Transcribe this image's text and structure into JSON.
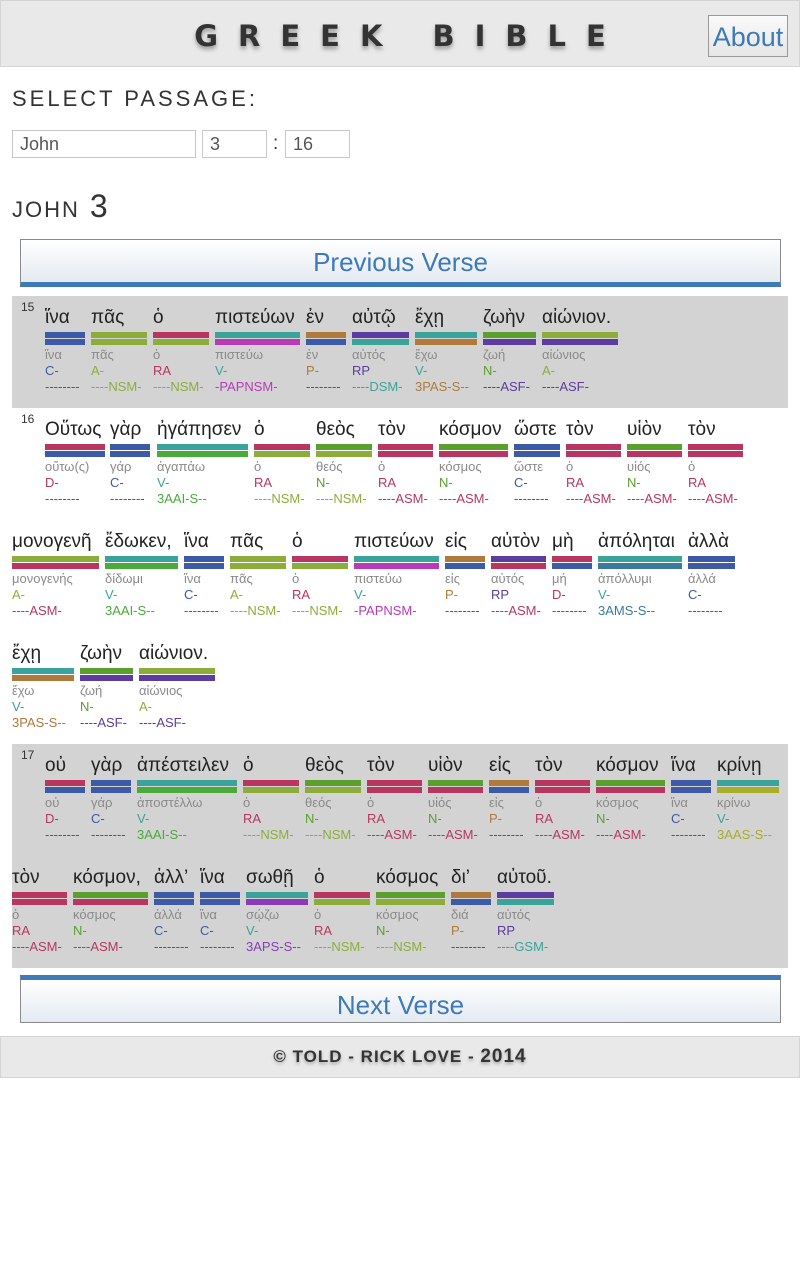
{
  "header": {
    "title": "GREEK BIBLE",
    "about_label": "About"
  },
  "selector": {
    "label": "SELECT PASSAGE:",
    "book": "John",
    "chapter": "3",
    "verse": "16",
    "separator": ":"
  },
  "chapter_heading": {
    "book": "JOHN",
    "chapter": "3"
  },
  "nav": {
    "prev_label": "Previous Verse",
    "next_label": "Next Verse"
  },
  "footer": {
    "owner": "© TOLD - RICK LOVE - ",
    "year": "2014"
  },
  "colors": {
    "RA": "#b8365f",
    "C": "#3c5aa6",
    "N": "#5aa02c",
    "V": "#3aa39a",
    "A": "#8cad3a",
    "P": "#b07a3c",
    "RP": "#5c3c9e",
    "D": "#b8365f",
    "parse_C": "#3c5aa6",
    "parse_RA": "#b8365f",
    "parse_V_pi": "#b07a3c",
    "parse_V_aai": "#5aa02c",
    "parse_V_ppa": "#b8365f",
    "parse_V_ams": "#3a7a9e",
    "parse_V_aas": "#a8ad2a",
    "parse_V_aps": "#8a3cb8",
    "parse_N": "#b8365f",
    "parse_A": "#5c3c9e",
    "parse_RP_dsm": "#3aa39a",
    "parse_RP_asm": "#b8365f",
    "parse_RP_gsm": "#3aa39a"
  },
  "verses": [
    {
      "number": "15",
      "lines": [
        [
          {
            "g": "ἵνα",
            "lx": "ἵνα",
            "ps": "C-",
            "pa": "--------",
            "c1": "#3c5aa6",
            "c2": "#3c5aa6",
            "pc": "#3c5aa6",
            "pac": "#3c5aa6"
          },
          {
            "g": "πᾶς",
            "lx": "πᾶς",
            "ps": "A-",
            "pa": "----NSM-",
            "c1": "#8cad3a",
            "c2": "#8cad3a",
            "pc": "#8cad3a",
            "pac": "#8cad3a"
          },
          {
            "g": "ὁ",
            "lx": "ὁ",
            "ps": "RA",
            "pa": "----NSM-",
            "c1": "#b8365f",
            "c2": "#8cad3a",
            "pc": "#b8365f",
            "pac": "#8cad3a"
          },
          {
            "g": "πιστεύων",
            "lx": "πιστεύω",
            "ps": "V-",
            "pa": "-PAPNSM-",
            "c1": "#3aa39a",
            "c2": "#b83ab8",
            "pc": "#3aa39a",
            "pac": "#b83ab8"
          },
          {
            "g": "ἐν",
            "lx": "ἐν",
            "ps": "P-",
            "pa": "--------",
            "c1": "#b07a3c",
            "c2": "#3c5aa6",
            "pc": "#b07a3c",
            "pac": "#3c5aa6"
          },
          {
            "g": "αὐτῷ",
            "lx": "αὐτός",
            "ps": "RP",
            "pa": "----DSM-",
            "c1": "#5c3c9e",
            "c2": "#3aa39a",
            "pc": "#5c3c9e",
            "pac": "#3aa39a"
          },
          {
            "g": "ἔχῃ",
            "lx": "ἔχω",
            "ps": "V-",
            "pa": "3PAS-S--",
            "c1": "#3aa39a",
            "c2": "#b07a3c",
            "pc": "#3aa39a",
            "pac": "#b07a3c"
          },
          {
            "g": "ζωὴν",
            "lx": "ζωή",
            "ps": "N-",
            "pa": "----ASF-",
            "c1": "#5aa02c",
            "c2": "#5c3c9e",
            "pc": "#5aa02c",
            "pac": "#5c3c9e"
          },
          {
            "g": "αἰώνιον.",
            "lx": "αἰώνιος",
            "ps": "A-",
            "pa": "----ASF-",
            "c1": "#8cad3a",
            "c2": "#5c3c9e",
            "pc": "#8cad3a",
            "pac": "#5c3c9e"
          }
        ]
      ]
    },
    {
      "number": "16",
      "lines": [
        [
          {
            "g": "Οὕτως",
            "lx": "οὕτω(ς)",
            "ps": "D-",
            "pa": "--------",
            "c1": "#b8365f",
            "c2": "#3c5aa6",
            "pc": "#b8365f",
            "pac": "#3c5aa6"
          },
          {
            "g": "γὰρ",
            "lx": "γάρ",
            "ps": "C-",
            "pa": "--------",
            "c1": "#3c5aa6",
            "c2": "#3c5aa6",
            "pc": "#3c5aa6",
            "pac": "#3c5aa6"
          },
          {
            "g": "ἠγάπησεν",
            "lx": "ἀγαπάω",
            "ps": "V-",
            "pa": "3AAI-S--",
            "c1": "#3aa39a",
            "c2": "#4aaa3a",
            "pc": "#3aa39a",
            "pac": "#4aaa3a"
          },
          {
            "g": "ὁ",
            "lx": "ὁ",
            "ps": "RA",
            "pa": "----NSM-",
            "c1": "#b8365f",
            "c2": "#8cad3a",
            "pc": "#b8365f",
            "pac": "#8cad3a"
          },
          {
            "g": "θεὸς",
            "lx": "θεός",
            "ps": "N-",
            "pa": "----NSM-",
            "c1": "#5aa02c",
            "c2": "#8cad3a",
            "pc": "#5aa02c",
            "pac": "#8cad3a"
          },
          {
            "g": "τὸν",
            "lx": "ὁ",
            "ps": "RA",
            "pa": "----ASM-",
            "c1": "#b8365f",
            "c2": "#b8365f",
            "pc": "#b8365f",
            "pac": "#b8365f"
          },
          {
            "g": "κόσμον",
            "lx": "κόσμος",
            "ps": "N-",
            "pa": "----ASM-",
            "c1": "#5aa02c",
            "c2": "#b8365f",
            "pc": "#5aa02c",
            "pac": "#b8365f"
          },
          {
            "g": "ὥστε",
            "lx": "ὥστε",
            "ps": "C-",
            "pa": "--------",
            "c1": "#3c5aa6",
            "c2": "#3c5aa6",
            "pc": "#3c5aa6",
            "pac": "#3c5aa6"
          },
          {
            "g": "τὸν",
            "lx": "ὁ",
            "ps": "RA",
            "pa": "----ASM-",
            "c1": "#b8365f",
            "c2": "#b8365f",
            "pc": "#b8365f",
            "pac": "#b8365f"
          },
          {
            "g": "υἱὸν",
            "lx": "υἱός",
            "ps": "N-",
            "pa": "----ASM-",
            "c1": "#5aa02c",
            "c2": "#b8365f",
            "pc": "#5aa02c",
            "pac": "#b8365f"
          },
          {
            "g": "τὸν",
            "lx": "ὁ",
            "ps": "RA",
            "pa": "----ASM-",
            "c1": "#b8365f",
            "c2": "#b8365f",
            "pc": "#b8365f",
            "pac": "#b8365f"
          }
        ],
        [
          {
            "g": "μονογενῆ",
            "lx": "μονογενής",
            "ps": "A-",
            "pa": "----ASM-",
            "c1": "#8cad3a",
            "c2": "#b8365f",
            "pc": "#8cad3a",
            "pac": "#b8365f"
          },
          {
            "g": "ἔδωκεν,",
            "lx": "δίδωμι",
            "ps": "V-",
            "pa": "3AAI-S--",
            "c1": "#3aa39a",
            "c2": "#4aaa3a",
            "pc": "#3aa39a",
            "pac": "#4aaa3a"
          },
          {
            "g": "ἵνα",
            "lx": "ἵνα",
            "ps": "C-",
            "pa": "--------",
            "c1": "#3c5aa6",
            "c2": "#3c5aa6",
            "pc": "#3c5aa6",
            "pac": "#3c5aa6"
          },
          {
            "g": "πᾶς",
            "lx": "πᾶς",
            "ps": "A-",
            "pa": "----NSM-",
            "c1": "#8cad3a",
            "c2": "#8cad3a",
            "pc": "#8cad3a",
            "pac": "#8cad3a"
          },
          {
            "g": "ὁ",
            "lx": "ὁ",
            "ps": "RA",
            "pa": "----NSM-",
            "c1": "#b8365f",
            "c2": "#8cad3a",
            "pc": "#b8365f",
            "pac": "#8cad3a"
          },
          {
            "g": "πιστεύων",
            "lx": "πιστεύω",
            "ps": "V-",
            "pa": "-PAPNSM-",
            "c1": "#3aa39a",
            "c2": "#b83ab8",
            "pc": "#3aa39a",
            "pac": "#b83ab8"
          },
          {
            "g": "εἰς",
            "lx": "εἰς",
            "ps": "P-",
            "pa": "--------",
            "c1": "#b07a3c",
            "c2": "#3c5aa6",
            "pc": "#b07a3c",
            "pac": "#3c5aa6"
          },
          {
            "g": "αὐτὸν",
            "lx": "αὐτός",
            "ps": "RP",
            "pa": "----ASM-",
            "c1": "#5c3c9e",
            "c2": "#b8365f",
            "pc": "#5c3c9e",
            "pac": "#b8365f"
          },
          {
            "g": "μὴ",
            "lx": "μή",
            "ps": "D-",
            "pa": "--------",
            "c1": "#b8365f",
            "c2": "#3c5aa6",
            "pc": "#b8365f",
            "pac": "#3c5aa6"
          },
          {
            "g": "ἀπόληται",
            "lx": "ἀπόλλυμι",
            "ps": "V-",
            "pa": "3AMS-S--",
            "c1": "#3aa39a",
            "c2": "#3a7a9e",
            "pc": "#3aa39a",
            "pac": "#3a7a9e"
          },
          {
            "g": "ἀλλὰ",
            "lx": "ἀλλά",
            "ps": "C-",
            "pa": "--------",
            "c1": "#3c5aa6",
            "c2": "#3c5aa6",
            "pc": "#3c5aa6",
            "pac": "#3c5aa6"
          }
        ],
        [
          {
            "g": "ἔχῃ",
            "lx": "ἔχω",
            "ps": "V-",
            "pa": "3PAS-S--",
            "c1": "#3aa39a",
            "c2": "#b07a3c",
            "pc": "#3aa39a",
            "pac": "#b07a3c"
          },
          {
            "g": "ζωὴν",
            "lx": "ζωή",
            "ps": "N-",
            "pa": "----ASF-",
            "c1": "#5aa02c",
            "c2": "#5c3c9e",
            "pc": "#5aa02c",
            "pac": "#5c3c9e"
          },
          {
            "g": "αἰώνιον.",
            "lx": "αἰώνιος",
            "ps": "A-",
            "pa": "----ASF-",
            "c1": "#8cad3a",
            "c2": "#5c3c9e",
            "pc": "#8cad3a",
            "pac": "#5c3c9e"
          }
        ]
      ]
    },
    {
      "number": "17",
      "lines": [
        [
          {
            "g": "οὐ",
            "lx": "οὐ",
            "ps": "D-",
            "pa": "--------",
            "c1": "#b8365f",
            "c2": "#3c5aa6",
            "pc": "#b8365f",
            "pac": "#3c5aa6"
          },
          {
            "g": "γὰρ",
            "lx": "γάρ",
            "ps": "C-",
            "pa": "--------",
            "c1": "#3c5aa6",
            "c2": "#3c5aa6",
            "pc": "#3c5aa6",
            "pac": "#3c5aa6"
          },
          {
            "g": "ἀπέστειλεν",
            "lx": "ἀποστέλλω",
            "ps": "V-",
            "pa": "3AAI-S--",
            "c1": "#3aa39a",
            "c2": "#4aaa3a",
            "pc": "#3aa39a",
            "pac": "#4aaa3a"
          },
          {
            "g": "ὁ",
            "lx": "ὁ",
            "ps": "RA",
            "pa": "----NSM-",
            "c1": "#b8365f",
            "c2": "#8cad3a",
            "pc": "#b8365f",
            "pac": "#8cad3a"
          },
          {
            "g": "θεὸς",
            "lx": "θεός",
            "ps": "N-",
            "pa": "----NSM-",
            "c1": "#5aa02c",
            "c2": "#8cad3a",
            "pc": "#5aa02c",
            "pac": "#8cad3a"
          },
          {
            "g": "τὸν",
            "lx": "ὁ",
            "ps": "RA",
            "pa": "----ASM-",
            "c1": "#b8365f",
            "c2": "#b8365f",
            "pc": "#b8365f",
            "pac": "#b8365f"
          },
          {
            "g": "υἱὸν",
            "lx": "υἱός",
            "ps": "N-",
            "pa": "----ASM-",
            "c1": "#5aa02c",
            "c2": "#b8365f",
            "pc": "#5aa02c",
            "pac": "#b8365f"
          },
          {
            "g": "εἰς",
            "lx": "εἰς",
            "ps": "P-",
            "pa": "--------",
            "c1": "#b07a3c",
            "c2": "#3c5aa6",
            "pc": "#b07a3c",
            "pac": "#3c5aa6"
          },
          {
            "g": "τὸν",
            "lx": "ὁ",
            "ps": "RA",
            "pa": "----ASM-",
            "c1": "#b8365f",
            "c2": "#b8365f",
            "pc": "#b8365f",
            "pac": "#b8365f"
          },
          {
            "g": "κόσμον",
            "lx": "κόσμος",
            "ps": "N-",
            "pa": "----ASM-",
            "c1": "#5aa02c",
            "c2": "#b8365f",
            "pc": "#5aa02c",
            "pac": "#b8365f"
          },
          {
            "g": "ἵνα",
            "lx": "ἵνα",
            "ps": "C-",
            "pa": "--------",
            "c1": "#3c5aa6",
            "c2": "#3c5aa6",
            "pc": "#3c5aa6",
            "pac": "#3c5aa6"
          },
          {
            "g": "κρίνῃ",
            "lx": "κρίνω",
            "ps": "V-",
            "pa": "3AAS-S--",
            "c1": "#3aa39a",
            "c2": "#a8ad2a",
            "pc": "#3aa39a",
            "pac": "#a8ad2a"
          }
        ],
        [
          {
            "g": "τὸν",
            "lx": "ὁ",
            "ps": "RA",
            "pa": "----ASM-",
            "c1": "#b8365f",
            "c2": "#b8365f",
            "pc": "#b8365f",
            "pac": "#b8365f"
          },
          {
            "g": "κόσμον,",
            "lx": "κόσμος",
            "ps": "N-",
            "pa": "----ASM-",
            "c1": "#5aa02c",
            "c2": "#b8365f",
            "pc": "#5aa02c",
            "pac": "#b8365f"
          },
          {
            "g": "ἀλλ’",
            "lx": "ἀλλά",
            "ps": "C-",
            "pa": "--------",
            "c1": "#3c5aa6",
            "c2": "#3c5aa6",
            "pc": "#3c5aa6",
            "pac": "#3c5aa6"
          },
          {
            "g": "ἵνα",
            "lx": "ἵνα",
            "ps": "C-",
            "pa": "--------",
            "c1": "#3c5aa6",
            "c2": "#3c5aa6",
            "pc": "#3c5aa6",
            "pac": "#3c5aa6"
          },
          {
            "g": "σωθῇ",
            "lx": "σῴζω",
            "ps": "V-",
            "pa": "3APS-S--",
            "c1": "#3aa39a",
            "c2": "#8a3cb8",
            "pc": "#3aa39a",
            "pac": "#8a3cb8"
          },
          {
            "g": "ὁ",
            "lx": "ὁ",
            "ps": "RA",
            "pa": "----NSM-",
            "c1": "#b8365f",
            "c2": "#8cad3a",
            "pc": "#b8365f",
            "pac": "#8cad3a"
          },
          {
            "g": "κόσμος",
            "lx": "κόσμος",
            "ps": "N-",
            "pa": "----NSM-",
            "c1": "#5aa02c",
            "c2": "#8cad3a",
            "pc": "#5aa02c",
            "pac": "#8cad3a"
          },
          {
            "g": "δι’",
            "lx": "διά",
            "ps": "P-",
            "pa": "--------",
            "c1": "#b07a3c",
            "c2": "#3c5aa6",
            "pc": "#b07a3c",
            "pac": "#3c5aa6"
          },
          {
            "g": "αὐτοῦ.",
            "lx": "αὐτός",
            "ps": "RP",
            "pa": "----GSM-",
            "c1": "#5c3c9e",
            "c2": "#3aa39a",
            "pc": "#5c3c9e",
            "pac": "#3aa39a"
          }
        ]
      ]
    }
  ]
}
